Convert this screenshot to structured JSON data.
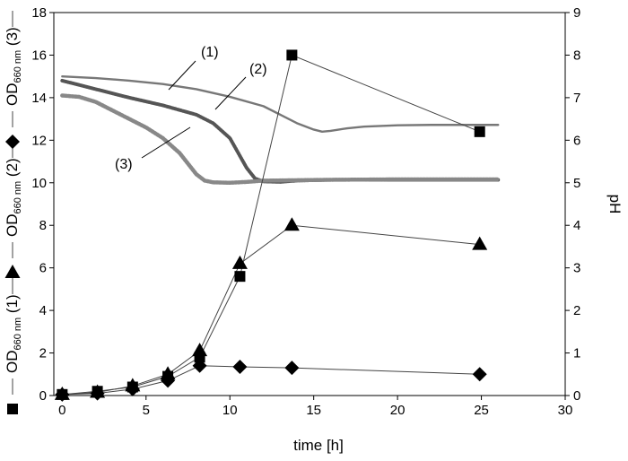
{
  "chart_data": {
    "type": "line",
    "xlabel": "time [h]",
    "ylabel_right": "pH",
    "xlim": [
      -0.5,
      30
    ],
    "ylim_left": [
      0,
      18
    ],
    "ylim_right": [
      0,
      9
    ],
    "x_ticks": [
      0,
      5,
      10,
      15,
      20,
      25,
      30
    ],
    "y_ticks_left": [
      0,
      2,
      4,
      6,
      8,
      10,
      12,
      14,
      16,
      18
    ],
    "y_ticks_right": [
      0,
      1,
      2,
      3,
      4,
      5,
      6,
      7,
      8,
      9
    ],
    "grid": false,
    "legend_left": [
      {
        "marker": "square",
        "text": "OD660 nm (1)",
        "base": "OD",
        "sub": "660 nm",
        "suffix": " (1)"
      },
      {
        "marker": "triangle",
        "text": "OD660 nm (2)",
        "base": "OD",
        "sub": "660 nm",
        "suffix": " (2)"
      },
      {
        "marker": "diamond",
        "text": "OD660 nm (3)",
        "base": "OD",
        "sub": "660 nm",
        "suffix": " (3)"
      }
    ],
    "series": [
      {
        "marker": "square",
        "axis": "left",
        "x": [
          0,
          2.1,
          4.2,
          6.3,
          8.2,
          10.6,
          13.7,
          24.9
        ],
        "y": [
          0.05,
          0.2,
          0.4,
          0.9,
          1.8,
          5.6,
          16.0,
          12.4
        ]
      },
      {
        "marker": "triangle",
        "axis": "left",
        "x": [
          0,
          2.1,
          4.2,
          6.3,
          8.2,
          10.6,
          13.7,
          24.9
        ],
        "y": [
          0.05,
          0.15,
          0.45,
          1.0,
          2.1,
          6.2,
          8.0,
          7.1
        ]
      },
      {
        "marker": "diamond",
        "axis": "left",
        "x": [
          0,
          2.1,
          4.2,
          6.3,
          8.2,
          10.6,
          13.7,
          24.9
        ],
        "y": [
          0.05,
          0.1,
          0.3,
          0.7,
          1.4,
          1.35,
          1.3,
          1.0
        ]
      },
      {
        "name": "(1)",
        "axis": "right",
        "style": "ph-1",
        "x": [
          0,
          2,
          4,
          6,
          8,
          10,
          12,
          13,
          14,
          15,
          15.5,
          16,
          17,
          18,
          20,
          22,
          24,
          26
        ],
        "y": [
          7.5,
          7.46,
          7.4,
          7.32,
          7.2,
          7.02,
          6.8,
          6.6,
          6.4,
          6.25,
          6.2,
          6.22,
          6.28,
          6.32,
          6.35,
          6.36,
          6.36,
          6.36
        ]
      },
      {
        "name": "(2)",
        "axis": "right",
        "style": "ph-2",
        "x": [
          0,
          2,
          4,
          6,
          8,
          9,
          10,
          10.5,
          11,
          11.5,
          12,
          13,
          14,
          16,
          20,
          26
        ],
        "y": [
          7.4,
          7.2,
          7.0,
          6.82,
          6.6,
          6.4,
          6.05,
          5.7,
          5.35,
          5.1,
          5.03,
          5.02,
          5.05,
          5.07,
          5.07,
          5.07
        ]
      },
      {
        "name": "(3)",
        "axis": "right",
        "style": "ph-3",
        "x": [
          0,
          1,
          2,
          3,
          4,
          5,
          6,
          7,
          7.5,
          8,
          8.5,
          9,
          10,
          11,
          12,
          14,
          16,
          20,
          26
        ],
        "y": [
          7.05,
          7.02,
          6.9,
          6.7,
          6.5,
          6.3,
          6.05,
          5.7,
          5.45,
          5.2,
          5.05,
          5.01,
          5.0,
          5.02,
          5.05,
          5.06,
          5.07,
          5.08,
          5.08
        ]
      }
    ],
    "annotations": [
      {
        "text": "(1)",
        "points_to_series": "ph-1"
      },
      {
        "text": "(2)",
        "points_to_series": "ph-2"
      },
      {
        "text": "(3)",
        "points_to_series": "ph-3"
      }
    ],
    "colors": {
      "axis": "#000000",
      "data": "#000000",
      "ph_line": "#777777",
      "ph_marker": "#666666"
    }
  }
}
